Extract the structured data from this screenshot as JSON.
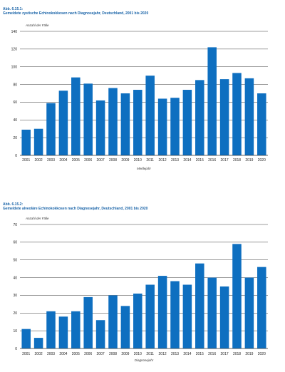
{
  "charts": [
    {
      "label_line1": "Abb. 6.15.1:",
      "label_line2": "Gemeldete zystische Echinokokkosen nach Diagnosejahr, Deutschland, 2001 bis 2020"
    },
    {
      "label_line1": "Abb. 6.15.2:",
      "label_line2": "Gemeldete alveoläre Echinokokkosen nach Diagnosejahr, Deutschland, 2001 bis 2020"
    }
  ],
  "chart_data": [
    {
      "type": "bar",
      "title": "Gemeldete zystische Echinokokkosen nach Diagnosejahr, Deutschland, 2001 bis 2020",
      "ylabel": "Anzahl der Fälle",
      "xlabel": "Meldejahr",
      "ylim": [
        0,
        140
      ],
      "yticks": [
        0,
        20,
        40,
        60,
        80,
        100,
        120,
        140
      ],
      "grid": true,
      "bar_color": "#0e6fc0",
      "categories": [
        "2001",
        "2002",
        "2003",
        "2004",
        "2005",
        "2006",
        "2007",
        "2008",
        "2009",
        "2010",
        "2011",
        "2012",
        "2013",
        "2014",
        "2015",
        "2016",
        "2017",
        "2018",
        "2019",
        "2020"
      ],
      "values": [
        29,
        30,
        59,
        73,
        88,
        81,
        62,
        76,
        70,
        74,
        90,
        64,
        65,
        74,
        85,
        122,
        86,
        93,
        87,
        70
      ]
    },
    {
      "type": "bar",
      "title": "Gemeldete alveoläre Echinokokkosen nach Diagnosejahr, Deutschland, 2001 bis 2020",
      "ylabel": "Anzahl der Fälle",
      "xlabel": "Diagnosejahr",
      "ylim": [
        0,
        70
      ],
      "yticks": [
        0,
        10,
        20,
        30,
        40,
        50,
        60,
        70
      ],
      "grid": true,
      "bar_color": "#0e6fc0",
      "categories": [
        "2001",
        "2002",
        "2003",
        "2004",
        "2005",
        "2006",
        "2007",
        "2008",
        "2009",
        "2010",
        "2011",
        "2012",
        "2013",
        "2014",
        "2015",
        "2016",
        "2017",
        "2018",
        "2019",
        "2020"
      ],
      "values": [
        11,
        6,
        21,
        18,
        21,
        29,
        16,
        30,
        24,
        31,
        36,
        41,
        38,
        36,
        48,
        40,
        35,
        59,
        40,
        46
      ]
    }
  ]
}
